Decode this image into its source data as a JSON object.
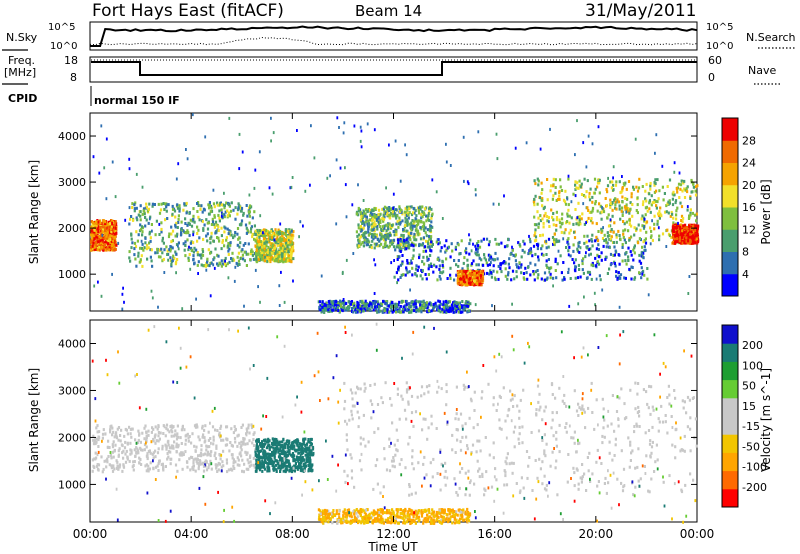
{
  "header": {
    "title": "Fort Hays East (fitACF)",
    "beam": "Beam 14",
    "date": "31/May/2011"
  },
  "top_panels": {
    "nsky_label": "N.Sky",
    "nsearch_label": "N.Search",
    "nsky_ticks": [
      "10^5",
      "10^0"
    ],
    "nsearch_ticks": [
      "10^5",
      "10^0"
    ],
    "freq_label_line1": "Freq.",
    "freq_label_line2": "[MHz]",
    "freq_ticks": [
      "18",
      "8"
    ],
    "nave_label": "Nave",
    "nave_ticks": [
      "60",
      "0"
    ],
    "cpid_label": "CPID",
    "cpid_value": "normal 150 IF"
  },
  "colors": {
    "power_scale": [
      "#0000ff",
      "#2e6fb0",
      "#4a9e6e",
      "#7fbf3f",
      "#f2e02a",
      "#f5a300",
      "#f06a00",
      "#ee0000"
    ],
    "velocity_scale": [
      "#ff0000",
      "#ff6a00",
      "#ffa500",
      "#f2c500",
      "#c8c8c8",
      "#c8c8c8",
      "#66cc33",
      "#1e9e32",
      "#1a7b74",
      "#1010cc"
    ]
  },
  "chart_data": [
    {
      "type": "heatmap",
      "name": "power",
      "ylabel": "Slant Range [km]",
      "xlabel": "Time UT",
      "x_ticks": [
        "00:00",
        "04:00",
        "08:00",
        "12:00",
        "16:00",
        "20:00",
        "00:00"
      ],
      "xlim_hours": [
        0,
        24
      ],
      "y_ticks": [
        1000,
        2000,
        3000,
        4000
      ],
      "ylim": [
        200,
        4500
      ],
      "colorbar_label": "Power [dB]",
      "colorbar_ticks": [
        "4",
        "8",
        "12",
        "16",
        "20",
        "24",
        "28"
      ],
      "features": [
        {
          "t0": 0.0,
          "t1": 1.0,
          "r0": 1550,
          "r1": 2200,
          "level": 24
        },
        {
          "t0": 1.5,
          "t1": 6.5,
          "r0": 1200,
          "r1": 2600,
          "level": 12
        },
        {
          "t0": 6.5,
          "t1": 8.0,
          "r0": 1300,
          "r1": 2000,
          "level": 16
        },
        {
          "t0": 9.0,
          "t1": 15.0,
          "r0": 200,
          "r1": 450,
          "level": 8
        },
        {
          "t0": 10.5,
          "t1": 13.5,
          "r0": 1600,
          "r1": 2500,
          "level": 12
        },
        {
          "t0": 12.0,
          "t1": 22.0,
          "r0": 900,
          "r1": 1800,
          "level": 8
        },
        {
          "t0": 14.5,
          "t1": 15.5,
          "r0": 800,
          "r1": 1100,
          "level": 24
        },
        {
          "t0": 17.5,
          "t1": 24.0,
          "r0": 1700,
          "r1": 3100,
          "level": 16
        },
        {
          "t0": 23.0,
          "t1": 24.0,
          "r0": 1700,
          "r1": 2100,
          "level": 28
        }
      ]
    },
    {
      "type": "heatmap",
      "name": "velocity",
      "ylabel": "Slant Range [km]",
      "xlabel": "Time UT",
      "x_ticks": [
        "00:00",
        "04:00",
        "08:00",
        "12:00",
        "16:00",
        "20:00",
        "00:00"
      ],
      "xlim_hours": [
        0,
        24
      ],
      "y_ticks": [
        1000,
        2000,
        3000,
        4000
      ],
      "ylim": [
        200,
        4500
      ],
      "colorbar_label": "Velocity [m s^-1]",
      "colorbar_ticks": [
        "200",
        "100",
        "50",
        "15",
        "-15",
        "-50",
        "-100",
        "-200"
      ],
      "features": [
        {
          "t0": 0.0,
          "t1": 6.5,
          "r0": 1300,
          "r1": 2300,
          "level": 0
        },
        {
          "t0": 6.5,
          "t1": 8.8,
          "r0": 1300,
          "r1": 2000,
          "level": 150
        },
        {
          "t0": 9.0,
          "t1": 15.0,
          "r0": 200,
          "r1": 500,
          "level": -50
        },
        {
          "t0": 10.0,
          "t1": 24.0,
          "r0": 800,
          "r1": 3200,
          "level": 0
        }
      ]
    }
  ]
}
